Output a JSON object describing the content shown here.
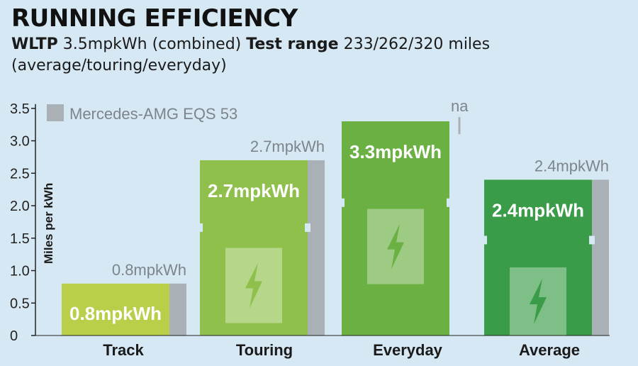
{
  "title": "RUNNING EFFICIENCY",
  "subtitle": {
    "wltp_label": "WLTP",
    "wltp_value": "3.5mpkWh (combined)",
    "range_label": "Test range",
    "range_value": "233/262/320 miles",
    "range_note": "(average/touring/everyday)"
  },
  "colors": {
    "background": "#d6e8f3",
    "comparison": "#a9b1b7",
    "track": "#b9cf4a",
    "touring": "#8fc04c",
    "everyday": "#6bb043",
    "average": "#3a9b48"
  },
  "icon": "lightning-bolt-icon",
  "chart_data": {
    "type": "bar",
    "title": "RUNNING EFFICIENCY",
    "ylabel": "Miles per kWh",
    "ylim": [
      0,
      3.5
    ],
    "yticks": [
      "0",
      "0.5",
      "1.0",
      "1.5",
      "2.0",
      "2.5",
      "3.0",
      "3.5"
    ],
    "categories": [
      "Track",
      "Touring",
      "Everyday",
      "Average"
    ],
    "legend": "Mercedes-AMG EQS 53",
    "series": [
      {
        "values": [
          0.8,
          2.7,
          3.3,
          2.4
        ],
        "labels": [
          "0.8mpkWh",
          "2.7mpkWh",
          "3.3mpkWh",
          "2.4mpkWh"
        ]
      },
      {
        "name": "Mercedes-AMG EQS 53",
        "values": [
          0.8,
          2.7,
          null,
          2.4
        ],
        "labels": [
          "0.8mpkWh",
          "2.7mpkWh",
          "na",
          "2.4mpkWh"
        ]
      }
    ]
  }
}
